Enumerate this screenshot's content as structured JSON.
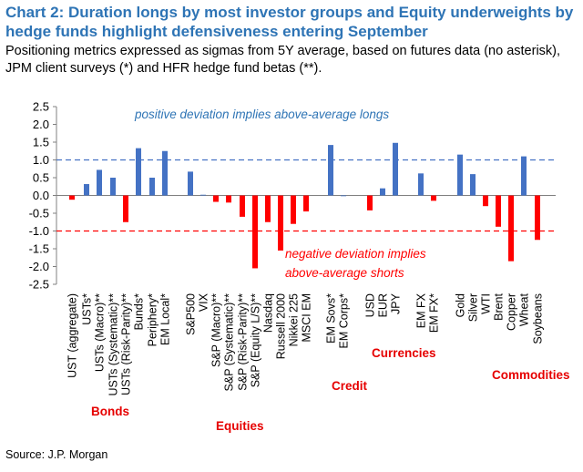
{
  "title": "Chart 2: Duration longs by most investor groups and Equity underweights by hedge funds highlight defensiveness entering September",
  "subtitle": "Positioning metrics expressed as sigmas from 5Y average, based on futures data (no asterisk), JPM client surveys (*) and HFR hedge fund betas (**).",
  "source": "Source: J.P. Morgan",
  "colors": {
    "positive": "#4472c4",
    "negative": "#ff0000",
    "title": "#2e74b5",
    "group_label": "#e60000"
  },
  "chart_data": {
    "type": "bar",
    "ylim": [
      -2.5,
      2.5
    ],
    "yticks": [
      "2.5",
      "2.0",
      "1.5",
      "1.0",
      "0.5",
      "0.0",
      "-0.5",
      "-1.0",
      "-1.5",
      "-2.0",
      "-2.5"
    ],
    "grid": false,
    "reference_lines": [
      {
        "value": 1.0,
        "color": "#4472c4",
        "style": "dashed"
      },
      {
        "value": -1.0,
        "color": "#ff0000",
        "style": "dashed"
      }
    ],
    "annotations": [
      {
        "text": "positive deviation implies above-average longs"
      },
      {
        "text": "negative deviation implies"
      },
      {
        "text": "above-average shorts"
      }
    ],
    "bars": [
      {
        "category": "UST (aggregate)",
        "value": -0.12
      },
      {
        "category": "USTs*",
        "value": 0.32
      },
      {
        "category": "USTs (Macro)**",
        "value": 0.72
      },
      {
        "category": "USTs (Systematic)**",
        "value": 0.5
      },
      {
        "category": "USTs (Risk-Parity)**",
        "value": -0.75
      },
      {
        "category": "Bunds*",
        "value": 1.33
      },
      {
        "category": "Periphery*",
        "value": 0.5
      },
      {
        "category": "EM Local*",
        "value": 1.25
      },
      {
        "category": "S&P500",
        "value": 0.67
      },
      {
        "category": "VIX",
        "value": 0.02
      },
      {
        "category": "S&P (Macro)**",
        "value": -0.18
      },
      {
        "category": "S&P (Systematic)**",
        "value": -0.2
      },
      {
        "category": "S&P (Risk-Parity)**",
        "value": -0.6
      },
      {
        "category": "S&P (Equity L/S)**",
        "value": -2.05
      },
      {
        "category": "Nasdaq",
        "value": -0.75
      },
      {
        "category": "Russell 2000",
        "value": -1.55
      },
      {
        "category": "Nikkei 225",
        "value": -0.8
      },
      {
        "category": "MSCI EM",
        "value": -0.45
      },
      {
        "category": "EM Sovs*",
        "value": 1.42
      },
      {
        "category": "EM Corps*",
        "value": 0.0
      },
      {
        "category": "USD",
        "value": -0.42
      },
      {
        "category": "EUR",
        "value": 0.2
      },
      {
        "category": "JPY",
        "value": 1.48
      },
      {
        "category": "EM FX",
        "value": 0.62
      },
      {
        "category": "EM FX*",
        "value": -0.15
      },
      {
        "category": "Gold",
        "value": 1.15
      },
      {
        "category": "Silver",
        "value": 0.6
      },
      {
        "category": "WTI",
        "value": -0.3
      },
      {
        "category": "Brent",
        "value": -0.88
      },
      {
        "category": "Copper",
        "value": -1.85
      },
      {
        "category": "Wheat",
        "value": 1.1
      },
      {
        "category": "Soybeans",
        "value": -1.25
      }
    ],
    "groups": [
      {
        "label": "Bonds"
      },
      {
        "label": "Equities"
      },
      {
        "label": "Credit"
      },
      {
        "label": "Currencies"
      },
      {
        "label": "Commodities"
      }
    ]
  }
}
